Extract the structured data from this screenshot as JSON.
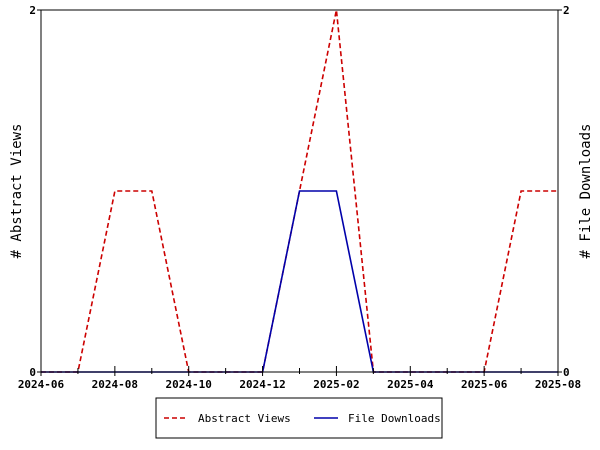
{
  "chart_data": {
    "type": "line",
    "x": [
      "2024-06",
      "2024-07",
      "2024-08",
      "2024-09",
      "2024-10",
      "2024-11",
      "2024-12",
      "2025-01",
      "2025-02",
      "2025-03",
      "2025-04",
      "2025-05",
      "2025-06",
      "2025-07",
      "2025-08"
    ],
    "x_ticks": [
      "2024-06",
      "2024-08",
      "2024-10",
      "2024-12",
      "2025-02",
      "2025-04",
      "2025-06",
      "2025-08"
    ],
    "series": [
      {
        "name": "Abstract Views",
        "axis": "left",
        "color": "#cc0000",
        "style": "dashed",
        "values": [
          0,
          0,
          1,
          1,
          0,
          0,
          0,
          1,
          2,
          0,
          0,
          0,
          0,
          1,
          1
        ]
      },
      {
        "name": "File Downloads",
        "axis": "right",
        "color": "#0000aa",
        "style": "solid",
        "values": [
          0,
          0,
          0,
          0,
          0,
          0,
          0,
          1,
          1,
          0,
          0,
          0,
          0,
          0,
          0
        ]
      }
    ],
    "ylabel_left": "# Abstract Views",
    "ylabel_right": "# File Downloads",
    "ylim_left": [
      0,
      2
    ],
    "ylim_right": [
      0,
      2
    ],
    "y_ticks_left": [
      "0",
      "2"
    ],
    "y_ticks_right": [
      "0",
      "2"
    ],
    "legend_position": "bottom",
    "grid": false
  }
}
